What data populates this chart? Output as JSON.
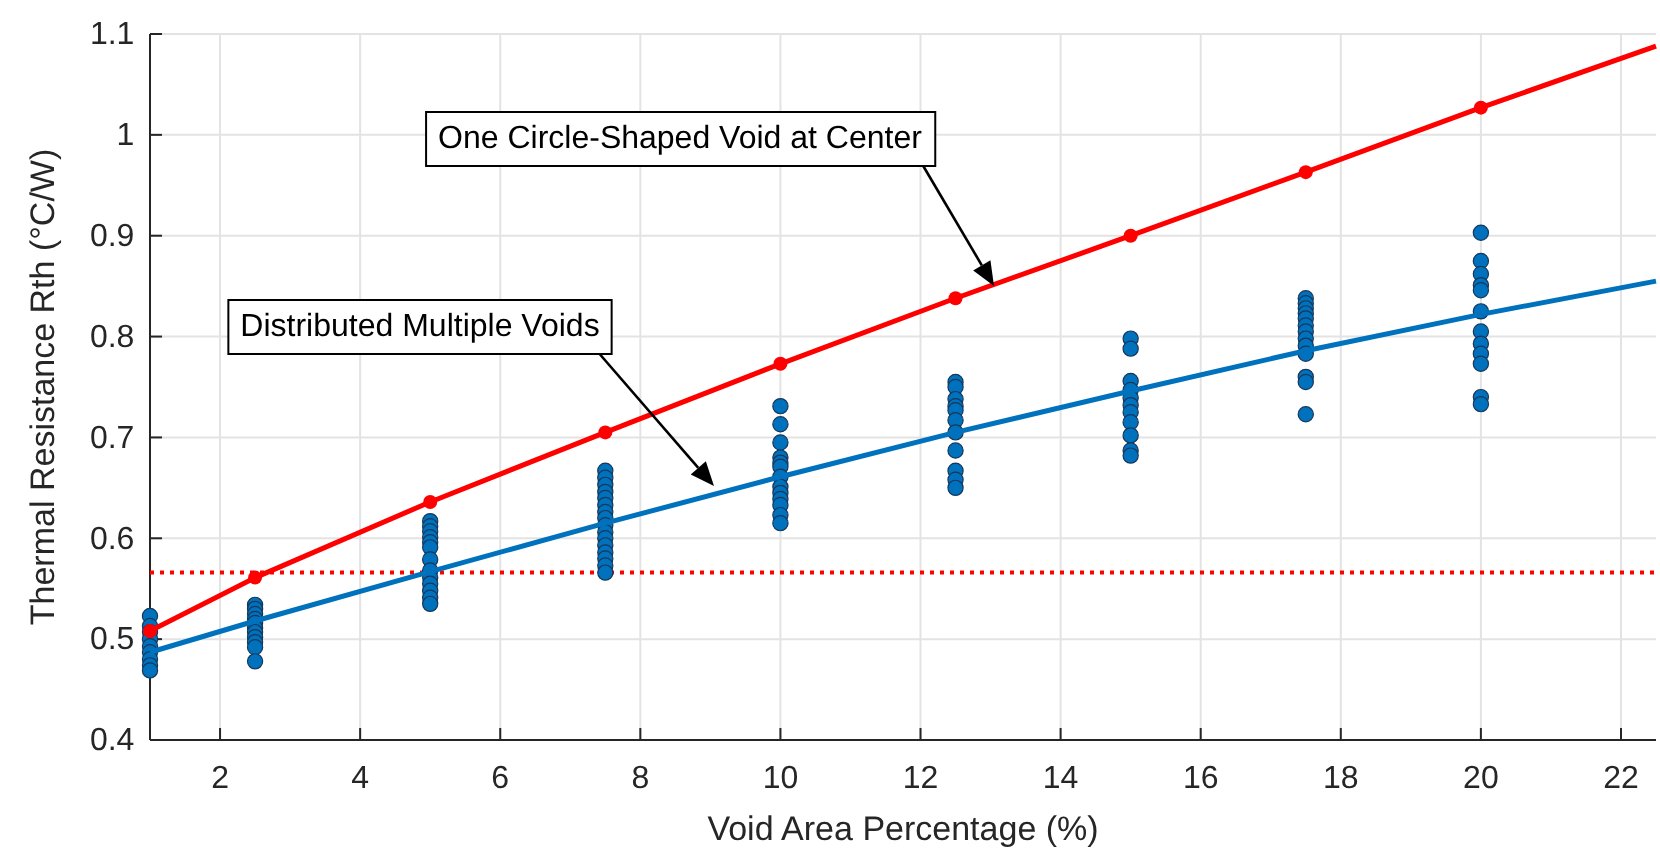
{
  "chart_data": {
    "type": "scatter",
    "xlabel": "Void Area Percentage (%)",
    "ylabel": "Thermal Resistance Rth (°C/W)",
    "xlim": [
      1,
      22.5
    ],
    "xticks": [
      2,
      4,
      6,
      8,
      10,
      12,
      14,
      16,
      18,
      20,
      22
    ],
    "ylim": [
      0.4,
      1.1
    ],
    "yticks": [
      0.4,
      0.5,
      0.6,
      0.7,
      0.8,
      0.9,
      1,
      1.1
    ],
    "grid": true,
    "ref_lines": [
      {
        "axis": "y",
        "value": 0.566,
        "color": "#ff0000",
        "line_style": "dotted"
      }
    ],
    "annotations": [
      "One Circle-Shaped Void at Center",
      "Distributed Multiple Voids"
    ],
    "series": [
      {
        "color": "#0072bd",
        "marker": "circle",
        "x": [
          1,
          1,
          1,
          1,
          1,
          1,
          1,
          1,
          1,
          2.5,
          2.5,
          2.5,
          2.5,
          2.5,
          2.5,
          2.5,
          2.5,
          2.5,
          2.5,
          2.5,
          5,
          5,
          5,
          5,
          5,
          5,
          5,
          5,
          5,
          5,
          5,
          5,
          5,
          7.5,
          7.5,
          7.5,
          7.5,
          7.5,
          7.5,
          7.5,
          7.5,
          7.5,
          7.5,
          7.5,
          7.5,
          7.5,
          7.5,
          7.5,
          7.5,
          10,
          10,
          10,
          10,
          10,
          10,
          10,
          10,
          10,
          10,
          10,
          10,
          10,
          12.5,
          12.5,
          12.5,
          12.5,
          12.5,
          12.5,
          12.5,
          12.5,
          12.5,
          12.5,
          12.5,
          15,
          15,
          15,
          15,
          15,
          15,
          15,
          15,
          15,
          15,
          15,
          17.5,
          17.5,
          17.5,
          17.5,
          17.5,
          17.5,
          17.5,
          17.5,
          17.5,
          17.5,
          17.5,
          17.5,
          17.5,
          20,
          20,
          20,
          20,
          20,
          20,
          20,
          20,
          20,
          20,
          20,
          20
        ],
        "values": [
          0.523,
          0.513,
          0.507,
          0.5,
          0.493,
          0.487,
          0.48,
          0.474,
          0.469,
          0.534,
          0.53,
          0.525,
          0.52,
          0.516,
          0.511,
          0.507,
          0.502,
          0.497,
          0.492,
          0.478,
          0.617,
          0.612,
          0.607,
          0.601,
          0.596,
          0.591,
          0.579,
          0.568,
          0.561,
          0.555,
          0.548,
          0.541,
          0.535,
          0.667,
          0.66,
          0.653,
          0.646,
          0.64,
          0.633,
          0.626,
          0.62,
          0.613,
          0.606,
          0.6,
          0.593,
          0.586,
          0.58,
          0.573,
          0.566,
          0.731,
          0.713,
          0.695,
          0.68,
          0.675,
          0.671,
          0.661,
          0.651,
          0.645,
          0.639,
          0.633,
          0.623,
          0.615,
          0.755,
          0.75,
          0.738,
          0.731,
          0.727,
          0.717,
          0.705,
          0.687,
          0.667,
          0.658,
          0.65,
          0.798,
          0.788,
          0.756,
          0.747,
          0.739,
          0.732,
          0.725,
          0.715,
          0.702,
          0.687,
          0.682,
          0.838,
          0.833,
          0.828,
          0.823,
          0.818,
          0.811,
          0.805,
          0.798,
          0.791,
          0.783,
          0.76,
          0.755,
          0.723,
          0.903,
          0.875,
          0.862,
          0.851,
          0.846,
          0.825,
          0.805,
          0.793,
          0.783,
          0.773,
          0.74,
          0.733
        ]
      },
      {
        "type": "line",
        "color": "#0072bd",
        "marker": "none",
        "line_style": "solid",
        "x": [
          1,
          2.5,
          5,
          7.5,
          10,
          12.5,
          15,
          17.5,
          20,
          22.5
        ],
        "values": [
          0.487,
          0.518,
          0.567,
          0.615,
          0.661,
          0.705,
          0.746,
          0.786,
          0.822,
          0.855
        ]
      },
      {
        "type": "line",
        "color": "#ff0000",
        "marker": "none",
        "line_style": "solid",
        "x": [
          1,
          2.5,
          5,
          7.5,
          10,
          12.5,
          15,
          17.5,
          20,
          22.5
        ],
        "values": [
          0.508,
          0.561,
          0.636,
          0.705,
          0.773,
          0.838,
          0.9,
          0.963,
          1.027,
          1.088
        ]
      },
      {
        "color": "#ff0000",
        "marker": "circle",
        "x": [
          1,
          2.5,
          5,
          7.5,
          10,
          12.5,
          15,
          17.5,
          20
        ],
        "values": [
          0.508,
          0.561,
          0.636,
          0.705,
          0.773,
          0.838,
          0.9,
          0.963,
          1.027
        ]
      }
    ]
  }
}
